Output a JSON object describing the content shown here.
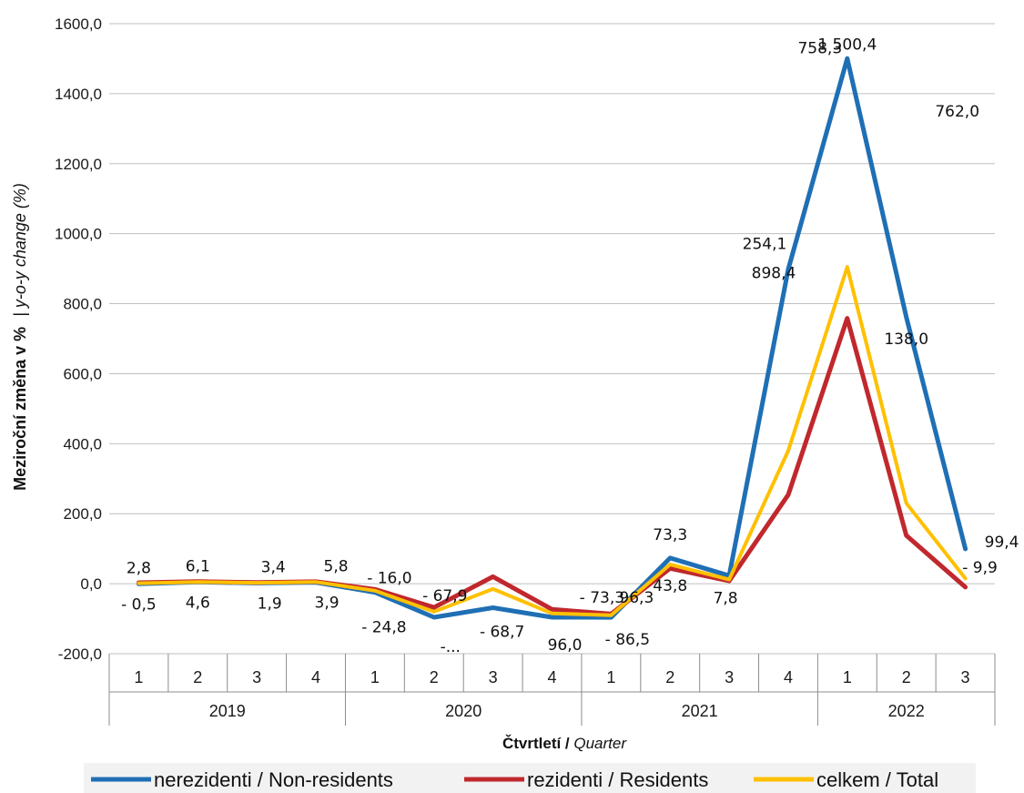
{
  "chart_data": {
    "type": "line",
    "ylabel": {
      "bold": "Meziroční změna v %",
      "italic": "| y-o-y change (%)"
    },
    "xlabel": {
      "bold": "Čtvrtletí / ",
      "italic": "Quarter"
    },
    "ylim": [
      -200,
      1600
    ],
    "ytick_step": 200,
    "yticks": [
      "-200,0",
      "0,0",
      "200,0",
      "400,0",
      "600,0",
      "800,0",
      "1000,0",
      "1200,0",
      "1400,0",
      "1600,0"
    ],
    "grid": true,
    "legend_position": "bottom",
    "quarters": [
      "1",
      "2",
      "3",
      "4",
      "1",
      "2",
      "3",
      "4",
      "1",
      "2",
      "3",
      "4",
      "1",
      "2",
      "3"
    ],
    "years": [
      {
        "label": "2019",
        "count": 4
      },
      {
        "label": "2020",
        "count": 4
      },
      {
        "label": "2021",
        "count": 4
      },
      {
        "label": "2022",
        "count": 3
      }
    ],
    "series": [
      {
        "name": "nerezidenti / Non-residents",
        "color": "#1f6fb5",
        "values": [
          -0.5,
          4.6,
          1.9,
          3.9,
          -24.8,
          -96.0,
          -68.7,
          -96.0,
          -96.3,
          73.3,
          23.0,
          898.4,
          1500.4,
          762.0,
          99.4
        ]
      },
      {
        "name": "rezidenti / Residents",
        "color": "#c0282d",
        "values": [
          2.8,
          6.1,
          3.4,
          5.8,
          -16.0,
          -67.9,
          20.0,
          -73.3,
          -86.5,
          43.8,
          7.8,
          254.1,
          758.3,
          138.0,
          -9.9
        ]
      },
      {
        "name": "celkem / Total",
        "color": "#ffc000",
        "values": [
          1.2,
          5.0,
          2.5,
          5.0,
          -20.0,
          -80.0,
          -15.0,
          -85.0,
          -90.0,
          55.0,
          12.0,
          380.0,
          905.0,
          230.0,
          15.0
        ]
      }
    ],
    "data_labels": [
      {
        "i": 0,
        "text": "2,8",
        "dx": 0,
        "dy": -12
      },
      {
        "i": 0,
        "text": "- 0,5",
        "dx": 0,
        "dy": 28
      },
      {
        "i": 1,
        "text": "6,1",
        "dx": 0,
        "dy": -12
      },
      {
        "i": 1,
        "text": "4,6",
        "dx": 0,
        "dy": 28
      },
      {
        "i": 2,
        "text": "3,4",
        "dx": 18,
        "dy": -12
      },
      {
        "i": 2,
        "text": "1,9",
        "dx": 14,
        "dy": 28
      },
      {
        "i": 3,
        "text": "5,8",
        "dx": 22,
        "dy": -12
      },
      {
        "i": 3,
        "text": "3,9",
        "dx": 12,
        "dy": 28
      },
      {
        "i": 4,
        "text": "- 16,0",
        "dx": 16,
        "dy": -10
      },
      {
        "i": 4,
        "text": "- 24,8",
        "dx": 10,
        "dy": 44
      },
      {
        "i": 5,
        "text": "- 67,9",
        "dx": 12,
        "dy": -18
      },
      {
        "i": 5,
        "text": "-...",
        "dx": 18,
        "dy": 38
      },
      {
        "i": 6,
        "text": "- 68,7",
        "dx": 10,
        "dy": 32
      },
      {
        "i": 7,
        "text": "96,0",
        "dx": 14,
        "dy": 36
      },
      {
        "i": 8,
        "text": "- 73,3",
        "dx": -10,
        "dy": -16
      },
      {
        "i": 8,
        "text": "96,3",
        "dx": 28,
        "dy": -16
      },
      {
        "i": 8,
        "text": "- 86,5",
        "dx": 18,
        "dy": 30
      },
      {
        "i": 9,
        "text": "73,3",
        "dx": 0,
        "dy": -20
      },
      {
        "i": 9,
        "text": "43,8",
        "dx": 0,
        "dy": 36
      },
      {
        "i": 10,
        "text": "7,8",
        "dx": -4,
        "dy": 30
      },
      {
        "i": 11,
        "text": "898,4",
        "dx": -16,
        "dy": 10
      },
      {
        "i": 11,
        "text": "254,1",
        "dx": -26,
        "dy": -22
      },
      {
        "i": 12,
        "text": "1 500,4",
        "dx": 0,
        "dy": -10
      },
      {
        "i": 12,
        "text": "758,3",
        "dx": -30,
        "dy": -6
      },
      {
        "i": 13,
        "text": "762,0",
        "dx": 56,
        "dy": -220
      },
      {
        "i": 13,
        "text": "138,0",
        "dx": 0,
        "dy": 30
      },
      {
        "i": 14,
        "text": "99,4",
        "dx": 40,
        "dy": -2
      },
      {
        "i": 14,
        "text": "- 9,9",
        "dx": 16,
        "dy": 26
      }
    ]
  }
}
